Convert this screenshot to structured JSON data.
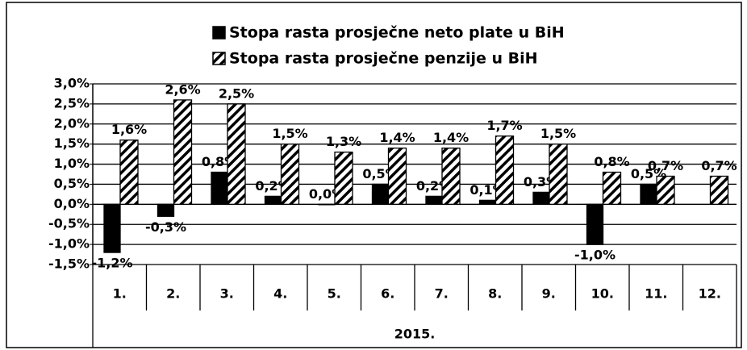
{
  "chart_data": {
    "type": "bar",
    "categories": [
      "1.",
      "2.",
      "3.",
      "4.",
      "5.",
      "6.",
      "7.",
      "8.",
      "9.",
      "10.",
      "11.",
      "12."
    ],
    "group_label": "2015.",
    "series": [
      {
        "name": "Stopa rasta prosječne neto plate u BiH",
        "color": "#000000",
        "pattern": "solid",
        "values": [
          -1.2,
          -0.3,
          0.8,
          0.2,
          0.0,
          0.5,
          0.2,
          0.1,
          0.3,
          -1.0,
          0.5,
          null
        ],
        "value_labels": [
          "-1,2%",
          "-0,3%",
          "0,8%",
          "0,2%",
          "0,0%",
          "0,5%",
          "0,2%",
          "0,1%",
          "0,3%",
          "-1,0%",
          "0,5%",
          null
        ]
      },
      {
        "name": "Stopa rasta prosječne penzije u BiH",
        "color": "#000000",
        "pattern": "hatch",
        "values": [
          1.6,
          2.6,
          2.5,
          1.5,
          1.3,
          1.4,
          1.4,
          1.7,
          1.5,
          0.8,
          0.7,
          0.7
        ],
        "value_labels": [
          "1,6%",
          "2,6%",
          "2,5%",
          "1,5%",
          "1,3%",
          "1,4%",
          "1,4%",
          "1,7%",
          "1,5%",
          "0,8%",
          "0,7%",
          "0,7%"
        ]
      }
    ],
    "ylim": [
      -1.5,
      3.0
    ],
    "yticks": [
      {
        "value": -1.5,
        "label": "-1,5%"
      },
      {
        "value": -1.0,
        "label": "-1,0%"
      },
      {
        "value": -0.5,
        "label": "-0,5%"
      },
      {
        "value": 0.0,
        "label": "0,0%"
      },
      {
        "value": 0.5,
        "label": "0,5%"
      },
      {
        "value": 1.0,
        "label": "1,0%"
      },
      {
        "value": 1.5,
        "label": "1,5%"
      },
      {
        "value": 2.0,
        "label": "2,0%"
      },
      {
        "value": 2.5,
        "label": "2,5%"
      },
      {
        "value": 3.0,
        "label": "3,0%"
      }
    ],
    "grid": true,
    "legend": "top"
  }
}
